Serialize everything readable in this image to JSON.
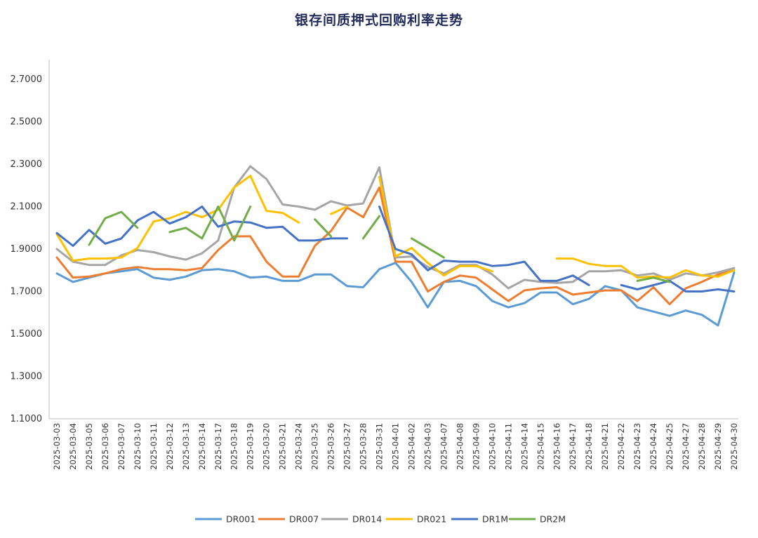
{
  "chart_data": {
    "type": "line",
    "title": "银存间质押式回购利率走势",
    "xlabel": "",
    "ylabel": "",
    "ylim": [
      1.1,
      2.8
    ],
    "yticks": [
      "1.1000",
      "1.3000",
      "1.5000",
      "1.7000",
      "1.9000",
      "2.1000",
      "2.3000",
      "2.5000",
      "2.7000"
    ],
    "ytick_values": [
      1.1,
      1.3,
      1.5,
      1.7,
      1.9,
      2.1,
      2.3,
      2.5,
      2.7
    ],
    "grid": false,
    "legend_position": "bottom",
    "categories": [
      "2025-03-03",
      "2025-03-04",
      "2025-03-05",
      "2025-03-06",
      "2025-03-07",
      "2025-03-10",
      "2025-03-11",
      "2025-03-12",
      "2025-03-13",
      "2025-03-14",
      "2025-03-17",
      "2025-03-18",
      "2025-03-19",
      "2025-03-20",
      "2025-03-21",
      "2025-03-24",
      "2025-03-25",
      "2025-03-26",
      "2025-03-27",
      "2025-03-28",
      "2025-03-31",
      "2025-04-01",
      "2025-04-02",
      "2025-04-03",
      "2025-04-07",
      "2025-04-08",
      "2025-04-09",
      "2025-04-10",
      "2025-04-11",
      "2025-04-14",
      "2025-04-15",
      "2025-04-16",
      "2025-04-17",
      "2025-04-18",
      "2025-04-21",
      "2025-04-22",
      "2025-04-23",
      "2025-04-24",
      "2025-04-25",
      "2025-04-27",
      "2025-04-28",
      "2025-04-29",
      "2025-04-30"
    ],
    "series": [
      {
        "name": "DR001",
        "color": "#5b9bd5",
        "values": [
          1.785,
          1.745,
          1.765,
          1.785,
          1.795,
          1.805,
          1.765,
          1.755,
          1.77,
          1.8,
          1.805,
          1.795,
          1.765,
          1.77,
          1.75,
          1.75,
          1.78,
          1.78,
          1.725,
          1.72,
          1.805,
          1.835,
          1.745,
          1.625,
          1.745,
          1.75,
          1.725,
          1.655,
          1.625,
          1.645,
          1.695,
          1.695,
          1.64,
          1.665,
          1.725,
          1.705,
          1.625,
          1.605,
          1.585,
          1.61,
          1.59,
          1.54,
          1.79
        ]
      },
      {
        "name": "DR007",
        "color": "#ed7d31",
        "values": [
          1.86,
          1.765,
          1.77,
          1.785,
          1.805,
          1.815,
          1.805,
          1.805,
          1.8,
          1.81,
          1.895,
          1.96,
          1.96,
          1.84,
          1.77,
          1.77,
          1.915,
          1.985,
          2.095,
          2.05,
          2.19,
          1.84,
          1.84,
          1.7,
          1.745,
          1.775,
          1.765,
          1.71,
          1.655,
          1.705,
          1.715,
          1.72,
          1.685,
          1.695,
          1.705,
          1.705,
          1.655,
          1.72,
          1.64,
          1.715,
          1.745,
          1.78,
          1.8
        ]
      },
      {
        "name": "DR014",
        "color": "#a5a5a5",
        "values": [
          1.9,
          1.84,
          1.825,
          1.825,
          1.87,
          1.895,
          1.885,
          1.865,
          1.85,
          1.88,
          1.94,
          2.19,
          2.29,
          2.23,
          2.11,
          2.1,
          2.085,
          2.125,
          2.105,
          2.115,
          2.285,
          1.86,
          1.865,
          1.815,
          1.785,
          1.825,
          1.825,
          1.78,
          1.715,
          1.755,
          1.745,
          1.74,
          1.745,
          1.795,
          1.795,
          1.8,
          1.775,
          1.785,
          1.755,
          1.785,
          1.775,
          1.79,
          1.81
        ]
      },
      {
        "name": "DR021",
        "color": "#ffc000",
        "values": [
          1.97,
          1.845,
          1.855,
          1.855,
          1.86,
          1.905,
          2.03,
          2.045,
          2.075,
          2.05,
          2.085,
          2.19,
          2.245,
          2.08,
          2.07,
          2.025,
          null,
          2.065,
          2.1,
          null,
          2.24,
          1.865,
          1.905,
          1.835,
          1.775,
          1.82,
          1.82,
          1.795,
          null,
          null,
          null,
          1.855,
          1.855,
          1.83,
          1.82,
          1.82,
          1.765,
          1.77,
          1.765,
          1.8,
          1.775,
          1.77,
          1.8
        ]
      },
      {
        "name": "DR1M",
        "color": "#4472c4",
        "values": [
          1.975,
          1.915,
          1.99,
          1.925,
          1.95,
          2.035,
          2.075,
          2.02,
          2.05,
          2.1,
          2.005,
          2.03,
          2.025,
          2.0,
          2.005,
          1.94,
          1.94,
          1.95,
          1.95,
          null,
          2.1,
          1.9,
          1.875,
          1.8,
          1.845,
          1.84,
          1.84,
          1.82,
          1.825,
          1.84,
          1.75,
          1.75,
          1.775,
          1.73,
          null,
          1.73,
          1.71,
          1.73,
          1.75,
          1.7,
          1.7,
          1.71,
          1.7
        ]
      },
      {
        "name": "DR2M",
        "color": "#70ad47",
        "values": [
          null,
          null,
          1.92,
          2.045,
          2.075,
          2.0,
          null,
          1.98,
          2.0,
          1.95,
          2.1,
          1.94,
          2.1,
          null,
          null,
          null,
          2.04,
          1.96,
          null,
          1.95,
          2.055,
          null,
          1.95,
          1.905,
          1.86,
          null,
          null,
          null,
          null,
          null,
          null,
          null,
          null,
          null,
          null,
          null,
          1.75,
          1.765,
          1.745,
          null,
          null,
          null,
          null
        ]
      }
    ]
  }
}
